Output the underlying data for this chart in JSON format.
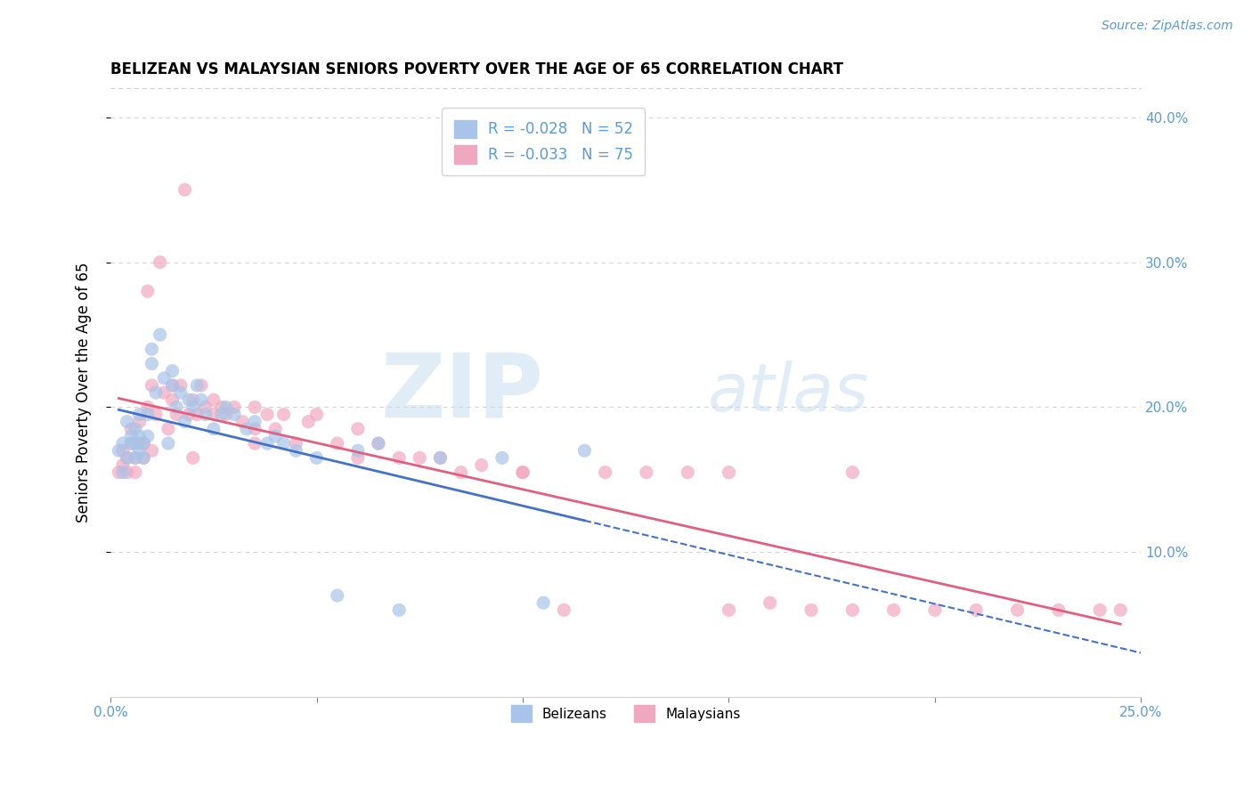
{
  "title": "BELIZEAN VS MALAYSIAN SENIORS POVERTY OVER THE AGE OF 65 CORRELATION CHART",
  "source": "Source: ZipAtlas.com",
  "ylabel": "Seniors Poverty Over the Age of 65",
  "xlim": [
    0.0,
    0.25
  ],
  "ylim": [
    0.0,
    0.42
  ],
  "belizean_R": -0.028,
  "belizean_N": 52,
  "malaysian_R": -0.033,
  "malaysian_N": 75,
  "belizean_color": "#a8c4e8",
  "malaysian_color": "#f0a8c0",
  "trend_belizean_color": "#4472c4",
  "trend_malaysian_color": "#e06080",
  "watermark_zip": "ZIP",
  "watermark_atlas": "atlas",
  "belizean_points_x": [
    0.002,
    0.003,
    0.003,
    0.004,
    0.004,
    0.005,
    0.005,
    0.006,
    0.006,
    0.006,
    0.007,
    0.007,
    0.007,
    0.008,
    0.008,
    0.009,
    0.009,
    0.01,
    0.01,
    0.011,
    0.012,
    0.013,
    0.014,
    0.015,
    0.015,
    0.016,
    0.017,
    0.018,
    0.019,
    0.02,
    0.021,
    0.022,
    0.023,
    0.025,
    0.027,
    0.028,
    0.03,
    0.033,
    0.035,
    0.038,
    0.04,
    0.042,
    0.045,
    0.05,
    0.055,
    0.06,
    0.065,
    0.07,
    0.08,
    0.095,
    0.105,
    0.115
  ],
  "belizean_points_y": [
    0.17,
    0.175,
    0.155,
    0.165,
    0.19,
    0.175,
    0.18,
    0.165,
    0.175,
    0.185,
    0.17,
    0.18,
    0.195,
    0.175,
    0.165,
    0.18,
    0.195,
    0.23,
    0.24,
    0.21,
    0.25,
    0.22,
    0.175,
    0.225,
    0.215,
    0.2,
    0.21,
    0.19,
    0.205,
    0.2,
    0.215,
    0.205,
    0.195,
    0.185,
    0.195,
    0.2,
    0.195,
    0.185,
    0.19,
    0.175,
    0.18,
    0.175,
    0.17,
    0.165,
    0.07,
    0.17,
    0.175,
    0.06,
    0.165,
    0.165,
    0.065,
    0.17
  ],
  "malaysian_points_x": [
    0.002,
    0.003,
    0.003,
    0.004,
    0.004,
    0.005,
    0.005,
    0.006,
    0.006,
    0.007,
    0.007,
    0.008,
    0.008,
    0.009,
    0.009,
    0.01,
    0.01,
    0.011,
    0.012,
    0.013,
    0.014,
    0.015,
    0.015,
    0.016,
    0.017,
    0.018,
    0.019,
    0.02,
    0.021,
    0.022,
    0.023,
    0.025,
    0.025,
    0.027,
    0.028,
    0.03,
    0.032,
    0.035,
    0.035,
    0.038,
    0.04,
    0.042,
    0.045,
    0.048,
    0.05,
    0.055,
    0.06,
    0.065,
    0.07,
    0.075,
    0.08,
    0.085,
    0.09,
    0.1,
    0.11,
    0.12,
    0.13,
    0.14,
    0.15,
    0.16,
    0.17,
    0.18,
    0.19,
    0.2,
    0.21,
    0.22,
    0.23,
    0.24,
    0.245,
    0.02,
    0.035,
    0.06,
    0.1,
    0.15,
    0.18
  ],
  "malaysian_points_y": [
    0.155,
    0.16,
    0.17,
    0.155,
    0.165,
    0.175,
    0.185,
    0.165,
    0.155,
    0.175,
    0.19,
    0.165,
    0.175,
    0.28,
    0.2,
    0.215,
    0.17,
    0.195,
    0.3,
    0.21,
    0.185,
    0.215,
    0.205,
    0.195,
    0.215,
    0.35,
    0.195,
    0.205,
    0.195,
    0.215,
    0.2,
    0.195,
    0.205,
    0.2,
    0.195,
    0.2,
    0.19,
    0.185,
    0.2,
    0.195,
    0.185,
    0.195,
    0.175,
    0.19,
    0.195,
    0.175,
    0.165,
    0.175,
    0.165,
    0.165,
    0.165,
    0.155,
    0.16,
    0.155,
    0.06,
    0.155,
    0.155,
    0.155,
    0.155,
    0.065,
    0.06,
    0.155,
    0.06,
    0.06,
    0.06,
    0.06,
    0.06,
    0.06,
    0.06,
    0.165,
    0.175,
    0.185,
    0.155,
    0.06,
    0.06
  ]
}
